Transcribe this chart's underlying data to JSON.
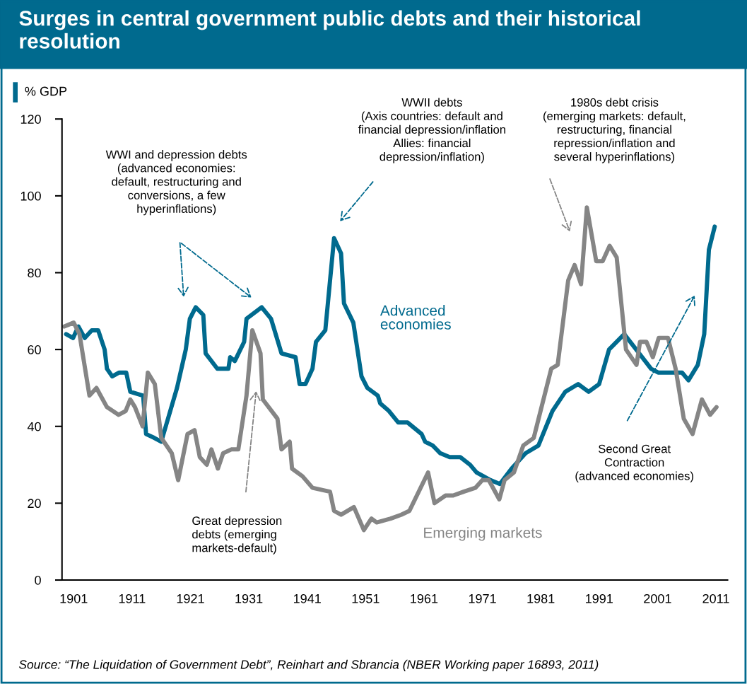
{
  "chart_data": {
    "type": "line",
    "title": "Surges in central government public debts and their historical resolution",
    "ylabel": "% GDP",
    "xlim": [
      1899,
      2013
    ],
    "xticks": [
      1901,
      1911,
      1921,
      1931,
      1941,
      1951,
      1961,
      1971,
      1981,
      1991,
      2001,
      2011
    ],
    "ylim": [
      0,
      120
    ],
    "yticks": [
      0,
      20,
      40,
      60,
      80,
      100,
      120
    ],
    "grid": false,
    "legend": false,
    "marker": "none",
    "line_style": "solid",
    "series": [
      {
        "name": "Advanced economies",
        "color": "#006a8e",
        "x": [
          1899.7,
          1900.9,
          1901.8,
          1902.9,
          1904.1,
          1905.2,
          1906.3,
          1906.7,
          1907.6,
          1908.8,
          1910.0,
          1910.7,
          1912.9,
          1913.4,
          1914.8,
          1916.0,
          1918.7,
          1920.2,
          1920.9,
          1921.9,
          1923.2,
          1923.6,
          1925.6,
          1927.5,
          1927.8,
          1928.6,
          1930.2,
          1930.6,
          1933.2,
          1934.8,
          1936.6,
          1939.0,
          1939.7,
          1940.7,
          1941.9,
          1942.5,
          1944.1,
          1945.6,
          1946.8,
          1947.3,
          1948.9,
          1950.3,
          1951.3,
          1953.1,
          1953.5,
          1955.0,
          1956.6,
          1958.2,
          1960.6,
          1961.2,
          1962.5,
          1963.8,
          1965.4,
          1967.2,
          1968.9,
          1970.0,
          1972.4,
          1974.0,
          1976.0,
          1978.4,
          1980.6,
          1983.0,
          1985.2,
          1987.4,
          1989.2,
          1991.0,
          1992.7,
          1995.3,
          1999.9,
          2001.1,
          2005.2,
          2006.3,
          2007.9,
          2009.0,
          2009.8,
          2010.8
        ],
        "values": [
          64,
          63,
          66,
          63,
          65,
          65,
          60,
          55,
          53,
          54,
          54,
          49,
          48,
          38,
          37,
          36,
          50,
          60,
          68,
          71,
          69,
          59,
          55,
          55,
          58,
          57,
          62,
          68,
          71,
          68,
          59,
          58,
          51,
          51,
          55,
          62,
          65,
          89,
          85,
          72,
          67,
          53,
          50,
          48,
          46,
          44,
          41,
          41,
          38,
          36,
          35,
          33,
          32,
          32,
          30,
          28,
          26,
          25,
          29,
          33,
          35,
          44,
          49,
          51,
          49,
          51,
          60,
          64,
          55,
          54,
          54,
          52,
          56,
          64,
          86,
          92
        ]
      },
      {
        "name": "Emerging markets",
        "color": "#858585",
        "x": [
          1899.4,
          1901.0,
          1902.0,
          1903.7,
          1904.9,
          1906.7,
          1908.7,
          1909.9,
          1910.7,
          1911.5,
          1912.8,
          1913.7,
          1914.9,
          1916.0,
          1917.8,
          1918.9,
          1920.5,
          1921.7,
          1922.6,
          1923.8,
          1924.6,
          1925.7,
          1926.6,
          1928.0,
          1929.2,
          1930.6,
          1931.6,
          1933.0,
          1933.4,
          1935.9,
          1936.6,
          1938.0,
          1938.4,
          1940.2,
          1941.9,
          1944.9,
          1945.6,
          1946.8,
          1949.0,
          1950.7,
          1952.0,
          1952.9,
          1955.3,
          1957.1,
          1958.5,
          1961.7,
          1962.8,
          1964.7,
          1966.0,
          1967.8,
          1969.8,
          1971.0,
          1972.1,
          1973.9,
          1974.8,
          1976.4,
          1978.0,
          1979.8,
          1982.8,
          1983.9,
          1985.7,
          1986.8,
          1987.9,
          1988.9,
          1990.5,
          1991.6,
          1992.8,
          1994.0,
          1995.6,
          1997.4,
          1998.0,
          1999.1,
          2000.2,
          2001.2,
          2002.8,
          2004.1,
          2005.5,
          2007.0,
          2008.6,
          2010.0,
          2011.1
        ],
        "values": [
          66,
          67,
          64,
          48,
          50,
          45,
          43,
          44,
          47,
          45,
          40,
          54,
          51,
          37,
          33,
          26,
          38,
          39,
          32,
          30,
          34,
          29,
          33,
          34,
          34,
          48,
          65,
          59,
          47,
          42,
          34,
          36,
          29,
          27,
          24,
          23,
          18,
          17,
          19,
          13,
          16,
          15,
          16,
          17,
          18,
          28,
          20,
          22,
          22,
          23,
          24,
          26,
          26,
          21,
          26,
          28,
          35,
          37,
          55,
          56,
          78,
          82,
          77,
          97,
          83,
          83,
          87,
          84,
          60,
          56,
          62,
          62,
          58,
          63,
          63,
          55,
          42,
          38,
          47,
          43,
          45
        ]
      }
    ],
    "annotations": [
      "WWI and depression debts\n(advanced economies:\ndefault, restructuring and\nconversions, a few\nhyperinflations)",
      "WWII debts\n(Axis countries: default and\nfinancial depression/inflation\nAllies: financial\ndepression/inflation)",
      "1980s debt crisis\n(emerging markets: default,\nrestructuring, financial\nrepression/inflation and\nseveral hyperinflations)",
      "Great depression\ndebts (emerging\nmarkets-default)",
      "Second Great\nContraction\n(advanced economies)",
      "Source: “The Liquidation of Government Debt”, Reinhart and Sbrancia (NBER Working paper 16893, 2011)"
    ]
  }
}
